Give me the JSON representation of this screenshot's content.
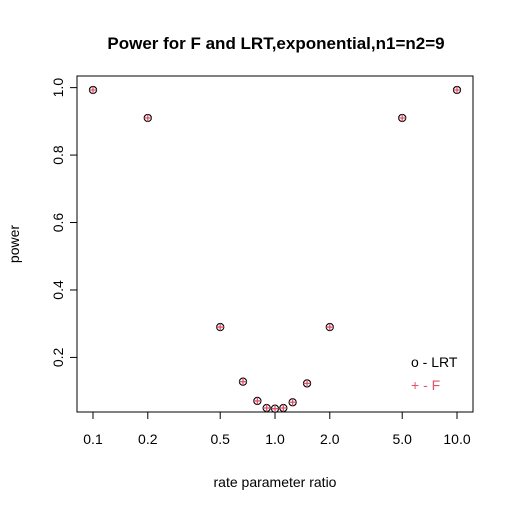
{
  "chart_data": {
    "type": "scatter",
    "title": "Power for F and LRT,exponential,n1=n2=9",
    "xlabel": "rate parameter ratio",
    "ylabel": "power",
    "x_scale": "log",
    "x_ticks": [
      0.1,
      0.2,
      0.5,
      1.0,
      2.0,
      5.0,
      10.0
    ],
    "x_tick_labels": [
      "0.1",
      "0.2",
      "0.5",
      "1.0",
      "2.0",
      "5.0",
      "10.0"
    ],
    "y_ticks": [
      0.2,
      0.4,
      0.6,
      0.8,
      1.0
    ],
    "y_tick_labels": [
      "0.2",
      "0.4",
      "0.6",
      "0.8",
      "1.0"
    ],
    "xlim": [
      0.1,
      10
    ],
    "ylim": [
      0.05,
      0.99
    ],
    "grid": false,
    "legend_position": "bottom-right",
    "legend": [
      {
        "text": "o - LRT",
        "color": "#000000"
      },
      {
        "text": "+ - F",
        "color": "#df536b"
      }
    ],
    "series": [
      {
        "name": "LRT",
        "marker": "circle",
        "color": "#000000",
        "x": [
          0.1,
          0.2,
          0.5,
          0.667,
          0.8,
          0.9,
          1.0,
          1.111,
          1.25,
          1.5,
          2.0,
          5.0,
          10.0
        ],
        "y": [
          0.993,
          0.91,
          0.29,
          0.128,
          0.071,
          0.05,
          0.048,
          0.05,
          0.067,
          0.123,
          0.29,
          0.91,
          0.993
        ]
      },
      {
        "name": "F",
        "marker": "plus",
        "color": "#df536b",
        "x": [
          0.1,
          0.2,
          0.5,
          0.667,
          0.8,
          0.9,
          1.0,
          1.111,
          1.25,
          1.5,
          2.0,
          5.0,
          10.0
        ],
        "y": [
          0.993,
          0.91,
          0.29,
          0.128,
          0.071,
          0.05,
          0.048,
          0.05,
          0.067,
          0.123,
          0.29,
          0.91,
          0.993
        ]
      }
    ]
  }
}
